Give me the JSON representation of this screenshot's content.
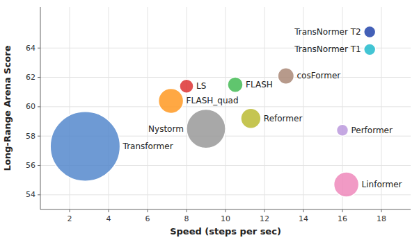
{
  "chart_data": {
    "type": "scatter",
    "xlabel": "Speed (steps per sec)",
    "ylabel": "Long-Range Arena Score",
    "xlim": [
      0.5,
      19.5
    ],
    "ylim": [
      53.0,
      66.8
    ],
    "xticks": [
      2,
      4,
      6,
      8,
      10,
      12,
      14,
      16,
      18
    ],
    "yticks": [
      54,
      56,
      58,
      60,
      62,
      64
    ],
    "grid": true,
    "series": [
      {
        "name": "Transformer",
        "color": "#5588CC",
        "x": [
          2.8
        ],
        "values": [
          57.3
        ],
        "sizes": [
          7000
        ]
      },
      {
        "name": "FLASH_quad",
        "color": "#FF9922",
        "x": [
          7.2
        ],
        "values": [
          60.4
        ],
        "sizes": [
          900
        ]
      },
      {
        "name": "LS",
        "color": "#DD3333",
        "x": [
          8.0
        ],
        "values": [
          61.4
        ],
        "sizes": [
          280
        ]
      },
      {
        "name": "Nystorm",
        "color": "#999999",
        "x": [
          9.0
        ],
        "values": [
          58.5
        ],
        "sizes": [
          2200
        ]
      },
      {
        "name": "FLASH",
        "color": "#44BB55",
        "x": [
          10.5
        ],
        "values": [
          61.5
        ],
        "sizes": [
          340
        ]
      },
      {
        "name": "Reformer",
        "color": "#BBBB33",
        "x": [
          11.3
        ],
        "values": [
          59.2
        ],
        "sizes": [
          580
        ]
      },
      {
        "name": "cosFormer",
        "color": "#AA8877",
        "x": [
          13.1
        ],
        "values": [
          62.1
        ],
        "sizes": [
          380
        ]
      },
      {
        "name": "Performer",
        "color": "#BB99DD",
        "x": [
          16.0
        ],
        "values": [
          58.4
        ],
        "sizes": [
          200
        ]
      },
      {
        "name": "Linformer",
        "color": "#EE88BB",
        "x": [
          16.2
        ],
        "values": [
          54.7
        ],
        "sizes": [
          900
        ]
      },
      {
        "name": "TransNormer T2",
        "color": "#2244AA",
        "x": [
          17.4
        ],
        "values": [
          65.1
        ],
        "sizes": [
          200
        ]
      },
      {
        "name": "TransNormer T1",
        "color": "#22BBCC",
        "x": [
          17.4
        ],
        "values": [
          63.9
        ],
        "sizes": [
          200
        ]
      }
    ]
  }
}
